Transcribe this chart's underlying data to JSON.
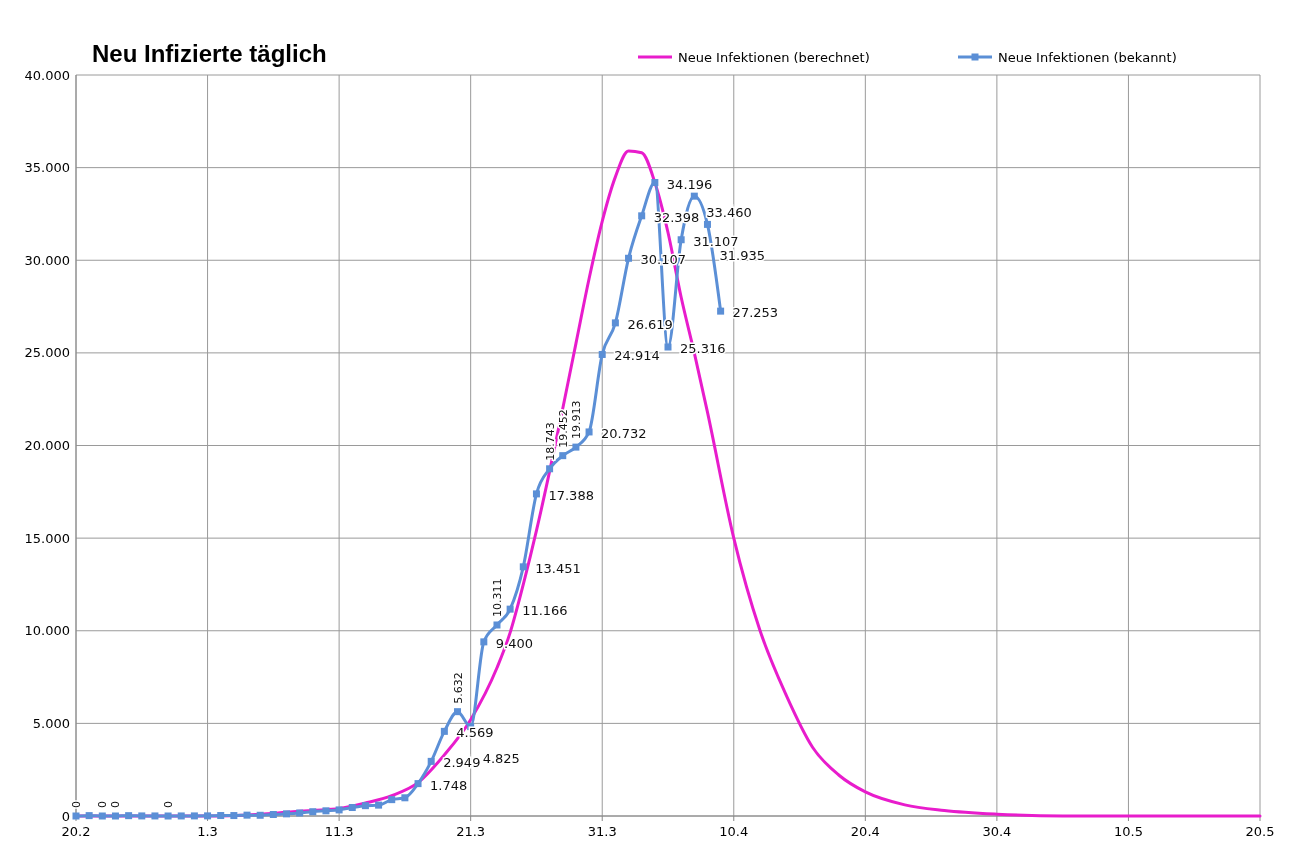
{
  "chart_data": {
    "type": "line",
    "title": "Neu Infizierte täglich",
    "xlim": [
      "--02-20",
      "--05-20"
    ],
    "xticks": [
      {
        "value": "--02-20",
        "label": "20.2"
      },
      {
        "value": "--03-01",
        "label": "1.3"
      },
      {
        "value": "--03-11",
        "label": "11.3"
      },
      {
        "value": "--03-21",
        "label": "21.3"
      },
      {
        "value": "--03-31",
        "label": "31.3"
      },
      {
        "value": "--04-10",
        "label": "10.4"
      },
      {
        "value": "--04-20",
        "label": "20.4"
      },
      {
        "value": "--04-30",
        "label": "30.4"
      },
      {
        "value": "--05-10",
        "label": "10.5"
      },
      {
        "value": "--05-20",
        "label": "20.5"
      }
    ],
    "ylim": [
      0,
      40
    ],
    "yticks": [
      0,
      {
        "value": 5,
        "label": "5.000"
      },
      {
        "value": 10,
        "label": "10.000"
      },
      {
        "value": 15,
        "label": "15.000"
      },
      {
        "value": 20,
        "label": "20.000"
      },
      {
        "value": 25,
        "label": "25.000"
      },
      {
        "value": 30,
        "label": "30.000"
      },
      {
        "value": 35,
        "label": "35.000"
      },
      {
        "value": 40,
        "label": "40.000"
      }
    ],
    "grid": true,
    "legend": "top right",
    "line_style": "solid",
    "series": [
      {
        "name": "Neue Infektionen (berechnet)",
        "color": "#e81ccc",
        "marker": "none",
        "x": [
          "--02-20",
          "--02-25",
          "--03-01",
          "--03-05",
          "--03-07",
          "--03-09",
          "--03-11",
          "--03-13",
          "--03-15",
          "--03-17",
          "--03-19",
          "--03-21",
          "--03-23",
          "--03-24",
          "--03-25",
          "--03-26",
          "--03-27",
          "--03-28",
          "--03-29",
          "--03-30",
          "--03-31",
          "--04-01",
          "--04-02",
          "--04-03",
          "--04-04",
          "--04-05",
          "--04-06",
          "--04-07",
          "--04-08",
          "--04-10",
          "--04-12",
          "--04-14",
          "--04-16",
          "--04-18",
          "--04-20",
          "--04-23",
          "--04-26",
          "--04-30",
          "--05-05",
          "--05-10",
          "--05-20"
        ],
        "values": [
          0,
          0,
          0,
          0.1,
          0.2,
          0.3,
          0.4,
          0.7,
          1.1,
          1.8,
          3.3,
          5.2,
          8,
          9.9,
          12.5,
          15.4,
          18.6,
          22,
          25.5,
          29,
          32.1,
          34.5,
          35.9,
          35.8,
          34.2,
          31.5,
          28,
          25,
          21.8,
          15,
          10,
          6.5,
          3.7,
          2.2,
          1.3,
          0.6,
          0.3,
          0.1,
          0,
          0,
          0
        ]
      },
      {
        "name": "Neue Infektionen (bekannt)",
        "color": "#5b8fd6",
        "marker": "square",
        "x": [
          "--02-20",
          "--02-21",
          "--02-22",
          "--02-23",
          "--02-24",
          "--02-25",
          "--02-26",
          "--02-27",
          "--02-28",
          "--02-29",
          "--03-01",
          "--03-02",
          "--03-03",
          "--03-04",
          "--03-05",
          "--03-06",
          "--03-07",
          "--03-08",
          "--03-09",
          "--03-10",
          "--03-11",
          "--03-12",
          "--03-13",
          "--03-14",
          "--03-15",
          "--03-16",
          "--03-17",
          "--03-18",
          "--03-19",
          "--03-20",
          "--03-21",
          "--03-22",
          "--03-23",
          "--03-24",
          "--03-25",
          "--03-26",
          "--03-27",
          "--03-28",
          "--03-29",
          "--03-30",
          "--03-31",
          "--04-01",
          "--04-02",
          "--04-03",
          "--04-04",
          "--04-05",
          "--04-06",
          "--04-07",
          "--04-08",
          "--04-09"
        ],
        "values": [
          0,
          0.02,
          0,
          0,
          0.018,
          0.004,
          0.003,
          0,
          0.003,
          0.005,
          0.007,
          0.025,
          0.024,
          0.046,
          0.039,
          0.081,
          0.116,
          0.163,
          0.231,
          0.28,
          0.329,
          0.458,
          0.558,
          0.587,
          0.883,
          0.983,
          1.748,
          2.949,
          4.569,
          5.632,
          4.825,
          9.4,
          10.311,
          11.166,
          13.451,
          17.388,
          18.743,
          19.452,
          19.913,
          20.732,
          24.914,
          26.619,
          30.107,
          32.398,
          34.196,
          25.316,
          31.107,
          33.46,
          31.935,
          27.253
        ],
        "value_labels": [
          "0",
          null,
          "0",
          "0",
          null,
          null,
          null,
          "0",
          null,
          null,
          null,
          null,
          null,
          null,
          null,
          null,
          null,
          null,
          null,
          null,
          null,
          null,
          null,
          null,
          null,
          null,
          "1.748",
          "2.949",
          "4.569",
          "5.632",
          "4.825",
          "9.400",
          "10.311",
          "11.166",
          "13.451",
          "17.388",
          "18.743",
          "19.452",
          "19.913",
          "20.732",
          "24.914",
          "26.619",
          "30.107",
          "32.398",
          "34.196",
          "25.316",
          "31.107",
          "33.460",
          "31.935",
          "27.253"
        ]
      }
    ]
  }
}
